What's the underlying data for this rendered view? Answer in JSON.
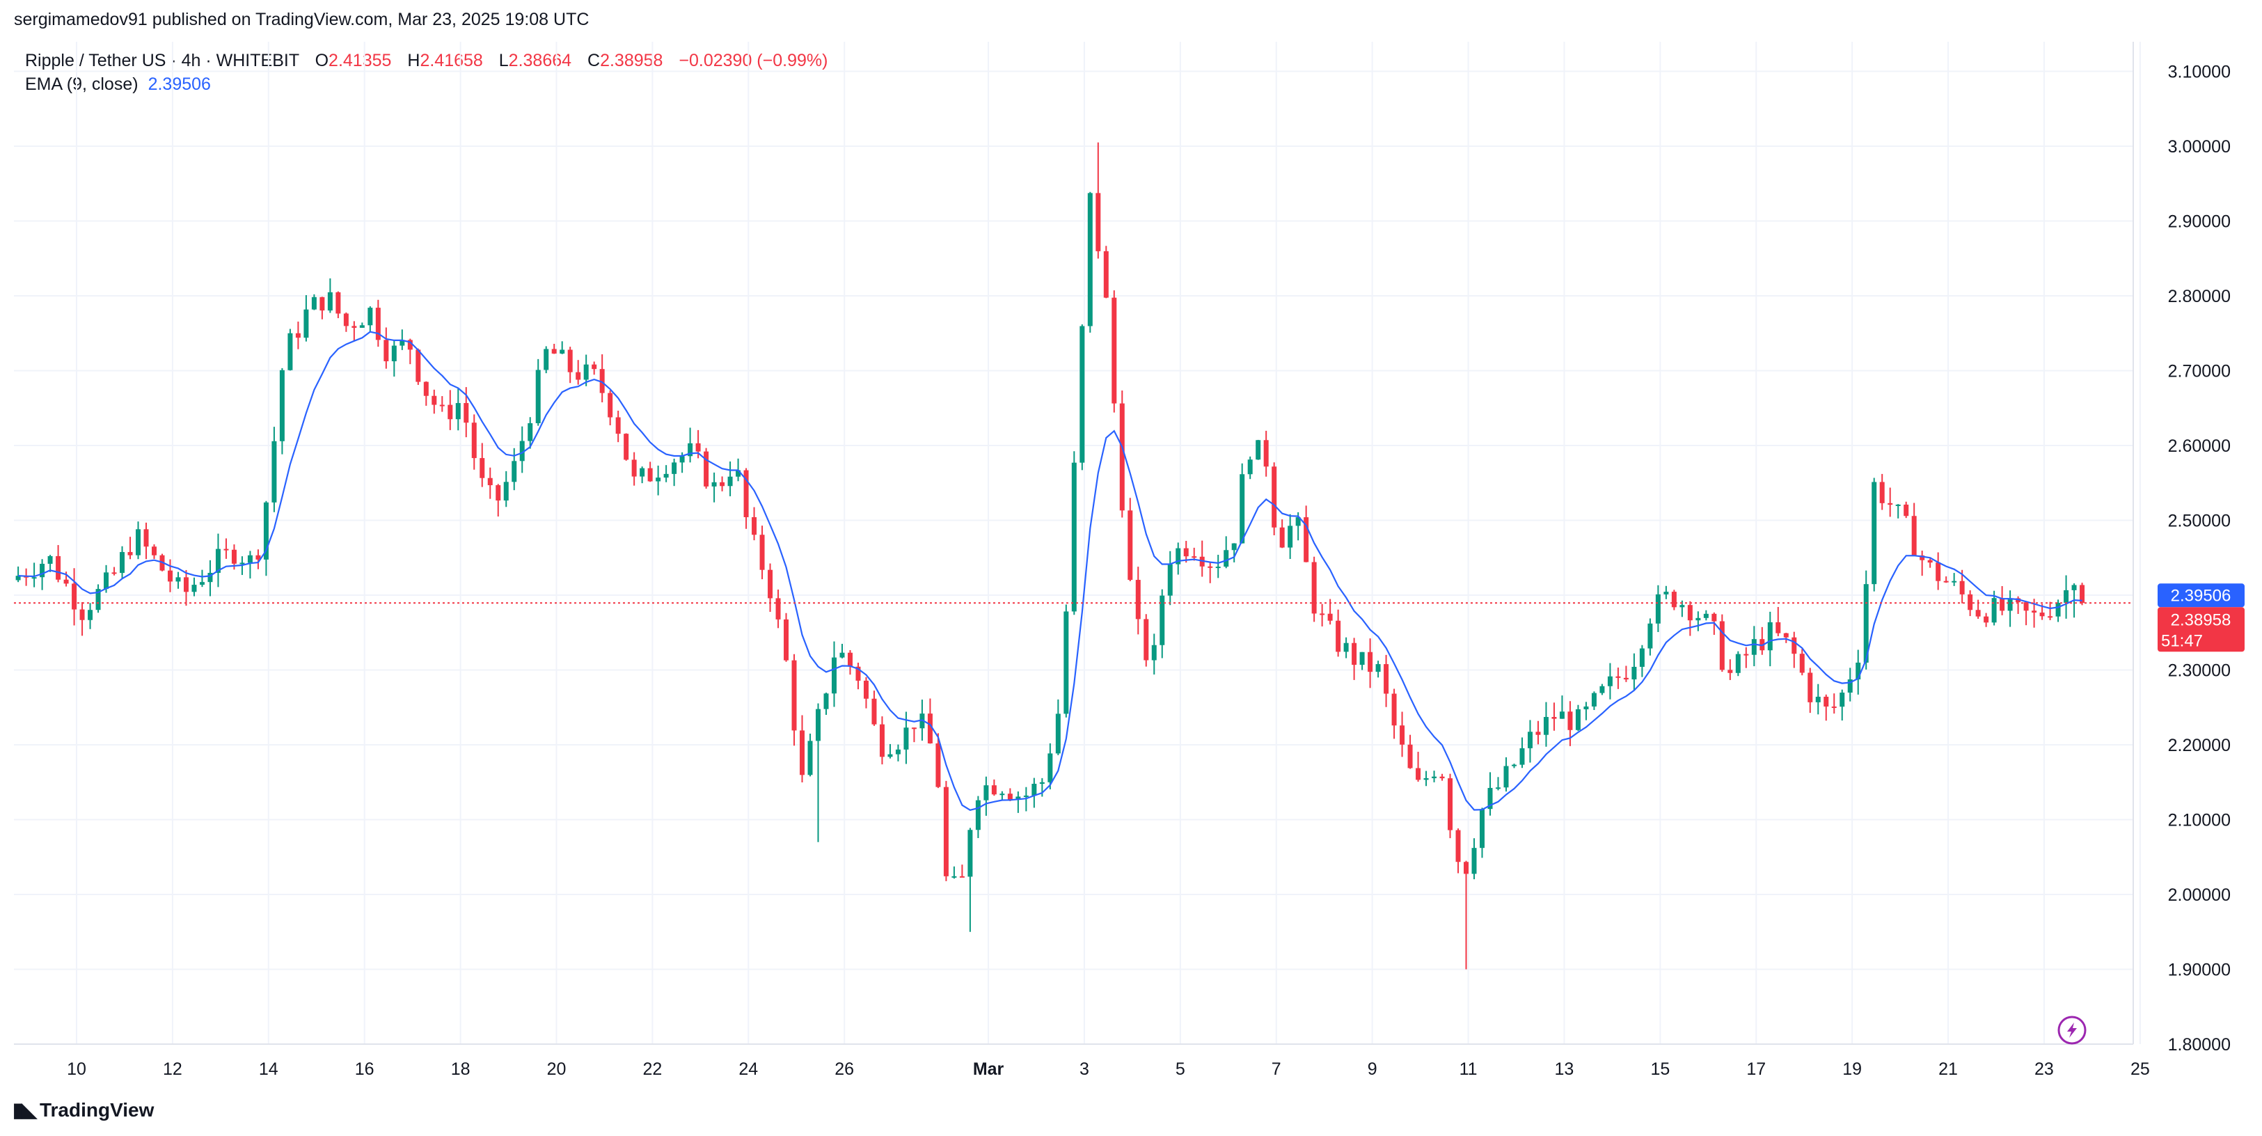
{
  "attribution": "sergimamedov91 published on TradingView.com, Mar 23, 2025 19:08 UTC",
  "legend": {
    "symbol": "Ripple / Tether US · 4h · WHITEBIT",
    "open_label": "O",
    "open": "2.41355",
    "high_label": "H",
    "high": "2.41658",
    "low_label": "L",
    "low": "2.38664",
    "close_label": "C",
    "close": "2.38958",
    "change": "−0.02390 (−0.99%)",
    "ema_label": "EMA (9, close)",
    "ema_value": "2.39506"
  },
  "price_tags": {
    "ema": "2.39506",
    "last": "2.38958",
    "countdown": "51:47"
  },
  "footer": {
    "logo_text": "TradingView"
  },
  "colors": {
    "up": "#089981",
    "down": "#f23645",
    "ema": "#2962ff",
    "grid": "#f0f3fa",
    "text": "#131722"
  },
  "icons": {
    "flash": "lightning-bolt-icon",
    "logo": "tradingview-logo-icon"
  },
  "chart_data": {
    "type": "candlestick",
    "title": "Ripple / Tether US · 4h · WHITEBIT",
    "xlabel": "",
    "ylabel": "",
    "ylim": [
      1.78,
      3.13
    ],
    "grid": true,
    "y_ticks": [
      "1.80000",
      "1.90000",
      "2.00000",
      "2.10000",
      "2.20000",
      "2.30000",
      "2.40000",
      "2.50000",
      "2.60000",
      "2.70000",
      "2.80000",
      "2.90000",
      "3.00000",
      "3.10000"
    ],
    "x_ticks": [
      {
        "label": "10",
        "day": 10
      },
      {
        "label": "12",
        "day": 12
      },
      {
        "label": "14",
        "day": 14
      },
      {
        "label": "16",
        "day": 16
      },
      {
        "label": "18",
        "day": 18
      },
      {
        "label": "20",
        "day": 20
      },
      {
        "label": "22",
        "day": 22
      },
      {
        "label": "24",
        "day": 24
      },
      {
        "label": "26",
        "day": 26
      },
      {
        "label": "Mar",
        "day": 29,
        "bold": true
      },
      {
        "label": "3",
        "day": 31
      },
      {
        "label": "5",
        "day": 33
      },
      {
        "label": "7",
        "day": 35
      },
      {
        "label": "9",
        "day": 37
      },
      {
        "label": "11",
        "day": 39
      },
      {
        "label": "13",
        "day": 41
      },
      {
        "label": "15",
        "day": 43
      },
      {
        "label": "17",
        "day": 45
      },
      {
        "label": "19",
        "day": 47
      },
      {
        "label": "21",
        "day": 49
      },
      {
        "label": "23",
        "day": 51
      },
      {
        "label": "25",
        "day": 53
      }
    ],
    "x_units": "days since Feb 0 (Mar 1 = day 29)",
    "anchors": [
      {
        "d": 8.7,
        "p": 2.42
      },
      {
        "d": 9.5,
        "p": 2.45
      },
      {
        "d": 10.2,
        "p": 2.38
      },
      {
        "d": 10.8,
        "p": 2.42
      },
      {
        "d": 11.3,
        "p": 2.48
      },
      {
        "d": 11.8,
        "p": 2.44
      },
      {
        "d": 12.3,
        "p": 2.4
      },
      {
        "d": 12.9,
        "p": 2.44
      },
      {
        "d": 13.4,
        "p": 2.46
      },
      {
        "d": 13.8,
        "p": 2.44
      },
      {
        "d": 14.1,
        "p": 2.55
      },
      {
        "d": 14.4,
        "p": 2.72
      },
      {
        "d": 14.9,
        "p": 2.78
      },
      {
        "d": 15.3,
        "p": 2.8
      },
      {
        "d": 15.7,
        "p": 2.76
      },
      {
        "d": 16.2,
        "p": 2.78
      },
      {
        "d": 16.6,
        "p": 2.72
      },
      {
        "d": 17.0,
        "p": 2.74
      },
      {
        "d": 17.3,
        "p": 2.68
      },
      {
        "d": 17.7,
        "p": 2.64
      },
      {
        "d": 18.1,
        "p": 2.66
      },
      {
        "d": 18.5,
        "p": 2.55
      },
      {
        "d": 18.8,
        "p": 2.52
      },
      {
        "d": 19.2,
        "p": 2.57
      },
      {
        "d": 19.6,
        "p": 2.66
      },
      {
        "d": 19.9,
        "p": 2.73
      },
      {
        "d": 20.4,
        "p": 2.7
      },
      {
        "d": 20.9,
        "p": 2.69
      },
      {
        "d": 21.3,
        "p": 2.64
      },
      {
        "d": 21.7,
        "p": 2.55
      },
      {
        "d": 22.0,
        "p": 2.56
      },
      {
        "d": 22.4,
        "p": 2.58
      },
      {
        "d": 22.9,
        "p": 2.59
      },
      {
        "d": 23.4,
        "p": 2.54
      },
      {
        "d": 23.8,
        "p": 2.58
      },
      {
        "d": 24.1,
        "p": 2.48
      },
      {
        "d": 24.5,
        "p": 2.42
      },
      {
        "d": 24.9,
        "p": 2.3
      },
      {
        "d": 25.2,
        "p": 2.15
      },
      {
        "d": 25.6,
        "p": 2.25
      },
      {
        "d": 25.9,
        "p": 2.33
      },
      {
        "d": 26.4,
        "p": 2.29
      },
      {
        "d": 26.8,
        "p": 2.2
      },
      {
        "d": 27.3,
        "p": 2.21
      },
      {
        "d": 27.6,
        "p": 2.24
      },
      {
        "d": 28.0,
        "p": 2.18
      },
      {
        "d": 28.2,
        "p": 2.02
      },
      {
        "d": 28.5,
        "p": 2.0
      },
      {
        "d": 28.8,
        "p": 2.14
      },
      {
        "d": 29.3,
        "p": 2.15
      },
      {
        "d": 29.8,
        "p": 2.13
      },
      {
        "d": 30.2,
        "p": 2.15
      },
      {
        "d": 30.6,
        "p": 2.26
      },
      {
        "d": 30.9,
        "p": 2.6
      },
      {
        "d": 31.2,
        "p": 2.93
      },
      {
        "d": 31.5,
        "p": 2.82
      },
      {
        "d": 31.8,
        "p": 2.58
      },
      {
        "d": 32.1,
        "p": 2.37
      },
      {
        "d": 32.5,
        "p": 2.3
      },
      {
        "d": 32.8,
        "p": 2.45
      },
      {
        "d": 33.3,
        "p": 2.47
      },
      {
        "d": 33.8,
        "p": 2.44
      },
      {
        "d": 34.2,
        "p": 2.48
      },
      {
        "d": 34.5,
        "p": 2.6
      },
      {
        "d": 34.9,
        "p": 2.58
      },
      {
        "d": 35.1,
        "p": 2.47
      },
      {
        "d": 35.5,
        "p": 2.5
      },
      {
        "d": 35.9,
        "p": 2.38
      },
      {
        "d": 36.3,
        "p": 2.34
      },
      {
        "d": 36.8,
        "p": 2.31
      },
      {
        "d": 37.2,
        "p": 2.3
      },
      {
        "d": 37.6,
        "p": 2.21
      },
      {
        "d": 38.0,
        "p": 2.14
      },
      {
        "d": 38.5,
        "p": 2.18
      },
      {
        "d": 38.8,
        "p": 2.06
      },
      {
        "d": 39.0,
        "p": 2.03
      },
      {
        "d": 39.4,
        "p": 2.12
      },
      {
        "d": 39.8,
        "p": 2.15
      },
      {
        "d": 40.4,
        "p": 2.21
      },
      {
        "d": 40.9,
        "p": 2.24
      },
      {
        "d": 41.4,
        "p": 2.23
      },
      {
        "d": 41.9,
        "p": 2.27
      },
      {
        "d": 42.5,
        "p": 2.31
      },
      {
        "d": 42.9,
        "p": 2.38
      },
      {
        "d": 43.3,
        "p": 2.4
      },
      {
        "d": 43.8,
        "p": 2.38
      },
      {
        "d": 44.2,
        "p": 2.35
      },
      {
        "d": 44.5,
        "p": 2.29
      },
      {
        "d": 45.0,
        "p": 2.33
      },
      {
        "d": 45.4,
        "p": 2.35
      },
      {
        "d": 45.8,
        "p": 2.33
      },
      {
        "d": 46.2,
        "p": 2.27
      },
      {
        "d": 46.6,
        "p": 2.24
      },
      {
        "d": 46.9,
        "p": 2.27
      },
      {
        "d": 47.3,
        "p": 2.34
      },
      {
        "d": 47.5,
        "p": 2.55
      },
      {
        "d": 47.9,
        "p": 2.52
      },
      {
        "d": 48.3,
        "p": 2.48
      },
      {
        "d": 48.6,
        "p": 2.44
      },
      {
        "d": 49.2,
        "p": 2.41
      },
      {
        "d": 49.7,
        "p": 2.38
      },
      {
        "d": 50.3,
        "p": 2.38
      },
      {
        "d": 50.9,
        "p": 2.37
      },
      {
        "d": 51.3,
        "p": 2.39
      },
      {
        "d": 51.6,
        "p": 2.41
      },
      {
        "d": 51.8,
        "p": 2.39
      }
    ],
    "candle_step_days": 0.1667,
    "highlights": [
      {
        "d": 31.25,
        "high": 3.005
      },
      {
        "d": 39.0,
        "low": 1.9
      },
      {
        "d": 28.65,
        "low": 1.95
      },
      {
        "d": 25.4,
        "low": 2.07
      }
    ],
    "ema": {
      "name": "EMA (9, close)",
      "period": 9,
      "last": 2.39506
    },
    "last": {
      "open": 2.41355,
      "high": 2.41658,
      "low": 2.38664,
      "close": 2.38958,
      "change": -0.0239,
      "change_pct": -0.99
    }
  }
}
